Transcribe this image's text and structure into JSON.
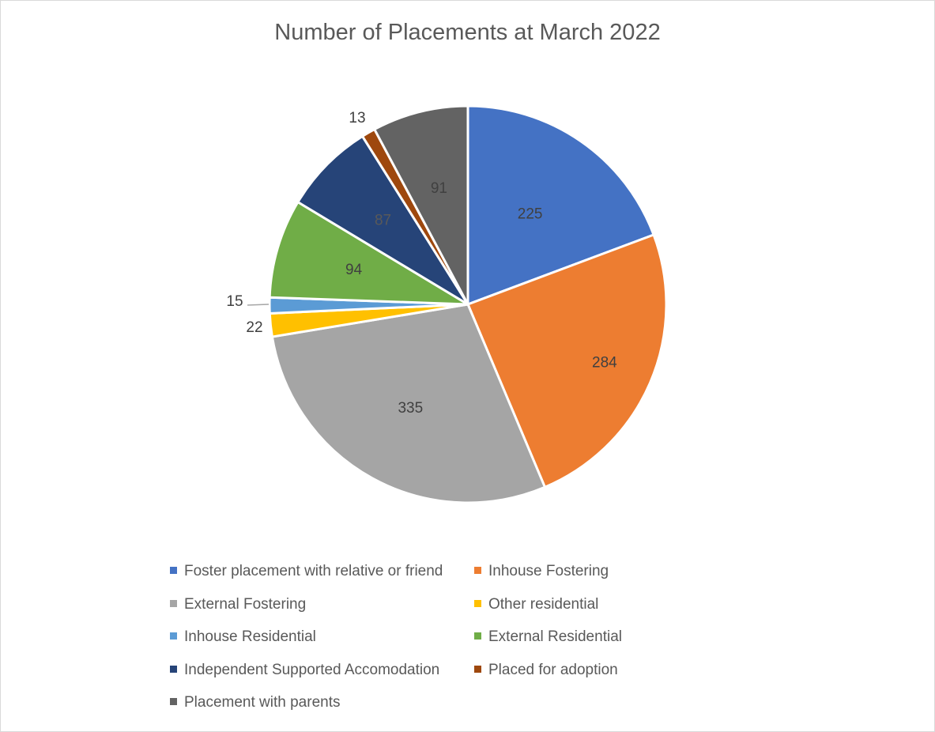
{
  "chart_data": {
    "type": "pie",
    "title": "Number of Placements at March 2022",
    "categories": [
      "Foster placement with relative or friend",
      "Inhouse Fostering",
      "External Fostering",
      "Other residential",
      "Inhouse Residential",
      "External Residential",
      "Independent Supported Accomodation",
      "Placed for adoption",
      "Placement with parents"
    ],
    "values": [
      225,
      284,
      335,
      22,
      15,
      94,
      87,
      13,
      91
    ],
    "colors": [
      "#4472C4",
      "#ED7D31",
      "#A5A5A5",
      "#FFC000",
      "#5B9BD5",
      "#70AD47",
      "#264478",
      "#9E480E",
      "#636363"
    ],
    "data_labels": [
      "225",
      "284",
      "335",
      "22",
      "15",
      "94",
      "87",
      "13",
      "91"
    ],
    "legend_position": "bottom",
    "start_angle": "12 o'clock",
    "direction": "clockwise"
  }
}
